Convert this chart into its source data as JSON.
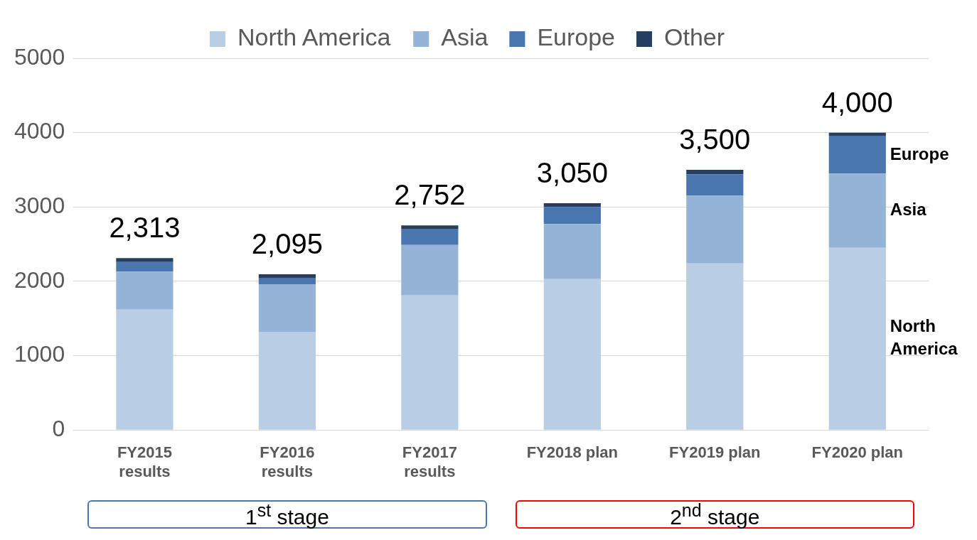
{
  "chart_data": {
    "type": "bar",
    "stacked": true,
    "categories": [
      "FY2015 results",
      "FY2016 results",
      "FY2017 results",
      "FY2018 plan",
      "FY2019 plan",
      "FY2020 plan"
    ],
    "series": [
      {
        "name": "North America",
        "color": "#b9cde5",
        "values": [
          1620,
          1320,
          1810,
          2030,
          2240,
          2450
        ]
      },
      {
        "name": "Asia",
        "color": "#95b3d7",
        "values": [
          510,
          640,
          680,
          740,
          910,
          1000
        ]
      },
      {
        "name": "Europe",
        "color": "#4a76b0",
        "values": [
          130,
          80,
          210,
          230,
          290,
          500
        ]
      },
      {
        "name": "Other",
        "color": "#263f60",
        "values": [
          53,
          55,
          52,
          50,
          60,
          50
        ]
      }
    ],
    "totals": [
      "2,313",
      "2,095",
      "2,752",
      "3,050",
      "3,500",
      "4,000"
    ],
    "ylim": [
      0,
      5000
    ],
    "yticks": [
      0,
      1000,
      2000,
      3000,
      4000,
      5000
    ],
    "grid": "y",
    "legend": "top",
    "annotations": [
      "1$^{st}$ stage",
      "2$^{nd}$ stage"
    ]
  }
}
